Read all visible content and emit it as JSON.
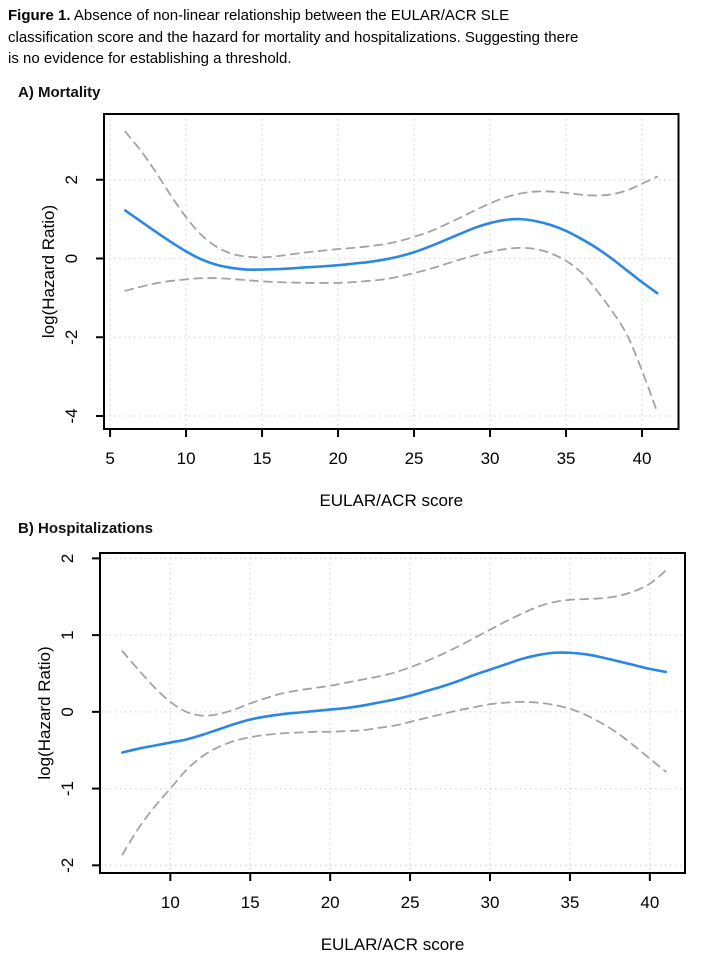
{
  "caption": {
    "bold": "Figure 1.",
    "line1": "Absence of non-linear relationship between the EULAR/ACR SLE",
    "line2": "classification score and the hazard for mortality and hospitalizations. Suggesting there",
    "line3": "is no evidence for establishing a threshold."
  },
  "panels": [
    {
      "title": "A) Mortality"
    },
    {
      "title": "B) Hospitalizations"
    }
  ],
  "colors": {
    "estimate": "#2B87E3",
    "ci": "#A3A3A3",
    "grid": "#D8D8D8",
    "axis": "#000000"
  },
  "chart_data": [
    {
      "type": "line",
      "title": "A) Mortality",
      "xlabel": "EULAR/ACR score",
      "ylabel": "log(Hazard Ratio)",
      "xlim": [
        4.6,
        42.4
      ],
      "ylim": [
        -4.33,
        3.67
      ],
      "x_ticks": [
        5,
        10,
        15,
        20,
        25,
        30,
        35,
        40
      ],
      "y_ticks": [
        -4,
        -2,
        0,
        2
      ],
      "grid": true,
      "legend": "none",
      "series": [
        {
          "name": "estimate",
          "style": "solid",
          "color": "#2B87E3",
          "points": [
            [
              6,
              1.22
            ],
            [
              7,
              0.95
            ],
            [
              8,
              0.68
            ],
            [
              9,
              0.42
            ],
            [
              10,
              0.18
            ],
            [
              11,
              -0.02
            ],
            [
              12,
              -0.16
            ],
            [
              13,
              -0.24
            ],
            [
              14,
              -0.28
            ],
            [
              15,
              -0.28
            ],
            [
              16,
              -0.27
            ],
            [
              17,
              -0.25
            ],
            [
              18,
              -0.22
            ],
            [
              19,
              -0.2
            ],
            [
              20,
              -0.17
            ],
            [
              21,
              -0.13
            ],
            [
              22,
              -0.09
            ],
            [
              23,
              -0.03
            ],
            [
              24,
              0.05
            ],
            [
              25,
              0.16
            ],
            [
              26,
              0.3
            ],
            [
              27,
              0.46
            ],
            [
              28,
              0.62
            ],
            [
              29,
              0.78
            ],
            [
              30,
              0.9
            ],
            [
              31,
              0.98
            ],
            [
              32,
              1.0
            ],
            [
              33,
              0.95
            ],
            [
              34,
              0.85
            ],
            [
              35,
              0.7
            ],
            [
              36,
              0.5
            ],
            [
              37,
              0.27
            ],
            [
              38,
              0.0
            ],
            [
              39,
              -0.3
            ],
            [
              40,
              -0.6
            ],
            [
              41,
              -0.88
            ]
          ]
        },
        {
          "name": "upper-95ci",
          "style": "dashed",
          "color": "#A3A3A3",
          "points": [
            [
              6,
              3.22
            ],
            [
              7,
              2.75
            ],
            [
              8,
              2.2
            ],
            [
              9,
              1.6
            ],
            [
              10,
              1.05
            ],
            [
              11,
              0.6
            ],
            [
              12,
              0.3
            ],
            [
              13,
              0.12
            ],
            [
              14,
              0.05
            ],
            [
              15,
              0.03
            ],
            [
              16,
              0.06
            ],
            [
              17,
              0.11
            ],
            [
              18,
              0.16
            ],
            [
              19,
              0.2
            ],
            [
              20,
              0.24
            ],
            [
              21,
              0.27
            ],
            [
              22,
              0.31
            ],
            [
              23,
              0.36
            ],
            [
              24,
              0.44
            ],
            [
              25,
              0.55
            ],
            [
              26,
              0.68
            ],
            [
              27,
              0.85
            ],
            [
              28,
              1.03
            ],
            [
              29,
              1.22
            ],
            [
              30,
              1.4
            ],
            [
              31,
              1.55
            ],
            [
              32,
              1.65
            ],
            [
              33,
              1.7
            ],
            [
              34,
              1.7
            ],
            [
              35,
              1.67
            ],
            [
              36,
              1.62
            ],
            [
              37,
              1.6
            ],
            [
              38,
              1.63
            ],
            [
              39,
              1.73
            ],
            [
              40,
              1.9
            ],
            [
              41,
              2.08
            ]
          ]
        },
        {
          "name": "lower-95ci",
          "style": "dashed",
          "color": "#A3A3A3",
          "points": [
            [
              6,
              -0.82
            ],
            [
              7,
              -0.72
            ],
            [
              8,
              -0.63
            ],
            [
              9,
              -0.57
            ],
            [
              10,
              -0.53
            ],
            [
              11,
              -0.5
            ],
            [
              12,
              -0.5
            ],
            [
              13,
              -0.52
            ],
            [
              14,
              -0.55
            ],
            [
              15,
              -0.58
            ],
            [
              16,
              -0.6
            ],
            [
              17,
              -0.61
            ],
            [
              18,
              -0.62
            ],
            [
              19,
              -0.62
            ],
            [
              20,
              -0.62
            ],
            [
              21,
              -0.6
            ],
            [
              22,
              -0.57
            ],
            [
              23,
              -0.53
            ],
            [
              24,
              -0.46
            ],
            [
              25,
              -0.37
            ],
            [
              26,
              -0.27
            ],
            [
              27,
              -0.15
            ],
            [
              28,
              -0.03
            ],
            [
              29,
              0.08
            ],
            [
              30,
              0.17
            ],
            [
              31,
              0.24
            ],
            [
              32,
              0.27
            ],
            [
              33,
              0.24
            ],
            [
              34,
              0.13
            ],
            [
              35,
              -0.06
            ],
            [
              36,
              -0.35
            ],
            [
              37,
              -0.8
            ],
            [
              38,
              -1.32
            ],
            [
              39,
              -1.93
            ],
            [
              40,
              -2.85
            ],
            [
              41,
              -3.9
            ]
          ]
        }
      ]
    },
    {
      "type": "line",
      "title": "B) Hospitalizations",
      "xlabel": "EULAR/ACR score",
      "ylabel": "log(Hazard Ratio)",
      "xlim": [
        5.6,
        42.2
      ],
      "ylim": [
        -2.1,
        2.07
      ],
      "x_ticks": [
        10,
        15,
        20,
        25,
        30,
        35,
        40
      ],
      "y_ticks": [
        -2,
        -1,
        0,
        1,
        2
      ],
      "grid": true,
      "legend": "none",
      "series": [
        {
          "name": "estimate",
          "style": "solid",
          "color": "#2B87E3",
          "points": [
            [
              7,
              -0.53
            ],
            [
              8,
              -0.48
            ],
            [
              9,
              -0.44
            ],
            [
              10,
              -0.4
            ],
            [
              11,
              -0.36
            ],
            [
              12,
              -0.3
            ],
            [
              13,
              -0.23
            ],
            [
              14,
              -0.16
            ],
            [
              15,
              -0.1
            ],
            [
              16,
              -0.06
            ],
            [
              17,
              -0.03
            ],
            [
              18,
              -0.01
            ],
            [
              19,
              0.01
            ],
            [
              20,
              0.03
            ],
            [
              21,
              0.05
            ],
            [
              22,
              0.08
            ],
            [
              23,
              0.12
            ],
            [
              24,
              0.16
            ],
            [
              25,
              0.21
            ],
            [
              26,
              0.27
            ],
            [
              27,
              0.33
            ],
            [
              28,
              0.4
            ],
            [
              29,
              0.48
            ],
            [
              30,
              0.55
            ],
            [
              31,
              0.62
            ],
            [
              32,
              0.69
            ],
            [
              33,
              0.74
            ],
            [
              34,
              0.77
            ],
            [
              35,
              0.77
            ],
            [
              36,
              0.75
            ],
            [
              37,
              0.71
            ],
            [
              38,
              0.66
            ],
            [
              39,
              0.61
            ],
            [
              40,
              0.56
            ],
            [
              41,
              0.52
            ]
          ]
        },
        {
          "name": "upper-95ci",
          "style": "dashed",
          "color": "#A3A3A3",
          "points": [
            [
              7,
              0.79
            ],
            [
              8,
              0.55
            ],
            [
              9,
              0.32
            ],
            [
              10,
              0.13
            ],
            [
              11,
              0.0
            ],
            [
              12,
              -0.05
            ],
            [
              13,
              -0.03
            ],
            [
              14,
              0.03
            ],
            [
              15,
              0.11
            ],
            [
              16,
              0.18
            ],
            [
              17,
              0.24
            ],
            [
              18,
              0.28
            ],
            [
              19,
              0.31
            ],
            [
              20,
              0.34
            ],
            [
              21,
              0.38
            ],
            [
              22,
              0.42
            ],
            [
              23,
              0.46
            ],
            [
              24,
              0.51
            ],
            [
              25,
              0.58
            ],
            [
              26,
              0.66
            ],
            [
              27,
              0.75
            ],
            [
              28,
              0.85
            ],
            [
              29,
              0.96
            ],
            [
              30,
              1.07
            ],
            [
              31,
              1.18
            ],
            [
              32,
              1.28
            ],
            [
              33,
              1.37
            ],
            [
              34,
              1.43
            ],
            [
              35,
              1.46
            ],
            [
              36,
              1.47
            ],
            [
              37,
              1.48
            ],
            [
              38,
              1.51
            ],
            [
              39,
              1.57
            ],
            [
              40,
              1.67
            ],
            [
              41,
              1.84
            ]
          ]
        },
        {
          "name": "lower-95ci",
          "style": "dashed",
          "color": "#A3A3A3",
          "points": [
            [
              7,
              -1.86
            ],
            [
              8,
              -1.52
            ],
            [
              9,
              -1.24
            ],
            [
              10,
              -1.0
            ],
            [
              11,
              -0.76
            ],
            [
              12,
              -0.58
            ],
            [
              13,
              -0.46
            ],
            [
              14,
              -0.38
            ],
            [
              15,
              -0.33
            ],
            [
              16,
              -0.3
            ],
            [
              17,
              -0.28
            ],
            [
              18,
              -0.27
            ],
            [
              19,
              -0.26
            ],
            [
              20,
              -0.26
            ],
            [
              21,
              -0.25
            ],
            [
              22,
              -0.24
            ],
            [
              23,
              -0.21
            ],
            [
              24,
              -0.18
            ],
            [
              25,
              -0.13
            ],
            [
              26,
              -0.08
            ],
            [
              27,
              -0.03
            ],
            [
              28,
              0.02
            ],
            [
              29,
              0.06
            ],
            [
              30,
              0.1
            ],
            [
              31,
              0.12
            ],
            [
              32,
              0.13
            ],
            [
              33,
              0.12
            ],
            [
              34,
              0.09
            ],
            [
              35,
              0.04
            ],
            [
              36,
              -0.04
            ],
            [
              37,
              -0.15
            ],
            [
              38,
              -0.28
            ],
            [
              39,
              -0.44
            ],
            [
              40,
              -0.61
            ],
            [
              41,
              -0.78
            ]
          ]
        }
      ]
    }
  ]
}
